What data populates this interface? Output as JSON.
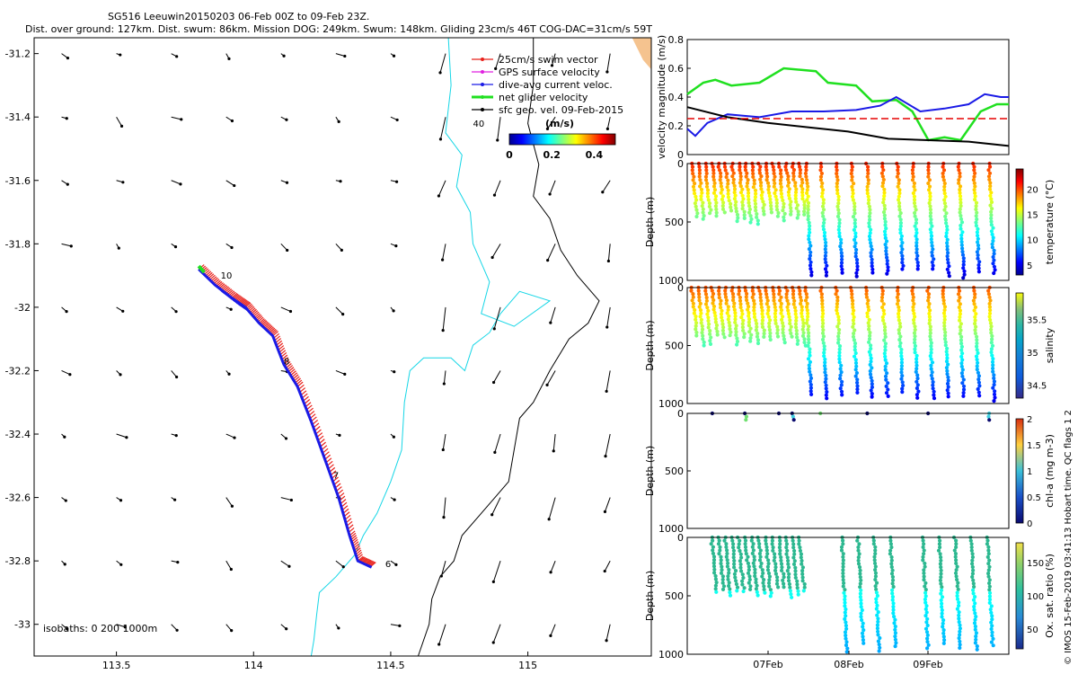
{
  "title_line1": "SG516 Leeuwin20150203 06-Feb 00Z to 09-Feb 23Z.",
  "title_line2": "Dist. over ground: 127km. Dist. swum: 86km. Mission DOG: 249km. Swum: 148km. Gliding 23cm/s 46T COG-DAC=31cm/s 59T",
  "side_label": "© IMOS 15-Feb-2019 03:41:13 Hobart time. QC flags 1  2",
  "colors": {
    "swim_vector": "#e8201a",
    "gps_velocity": "#e020e0",
    "dac": "#1a1ae6",
    "net_velocity": "#20e020",
    "sfc_geo": "#000000",
    "isobath_0": "#15d6e6",
    "isobath_200": "#000000",
    "land": "#f5c38f",
    "reference_line": "#e60000"
  },
  "chart_data": [
    {
      "type": "map",
      "xlim": [
        113.2,
        115.45
      ],
      "ylim": [
        -33.1,
        -31.15
      ],
      "xticks": [
        "113.5",
        "114",
        "114.5",
        "115"
      ],
      "yticks": [
        "-31.2",
        "-31.4",
        "-31.6",
        "-31.8",
        "-32",
        "-32.2",
        "-32.4",
        "-32.6",
        "-32.8",
        "-33"
      ],
      "legend": [
        "25cm/s swim vector",
        "GPS surface velocity",
        "dive-avg current veloc.",
        "net glider velocity",
        "sfc geo. vel. 09-Feb-2015"
      ],
      "colorbar": {
        "label": "(m/s)",
        "ticks": [
          "0",
          "0.2",
          "0.4"
        ],
        "range": [
          0,
          0.5
        ]
      },
      "isobaths_label": "isobaths: 0   200   1000m",
      "track": [
        [
          113.8,
          -31.88
        ],
        [
          113.86,
          -31.93
        ],
        [
          113.92,
          -31.97
        ],
        [
          113.97,
          -32.0
        ],
        [
          114.02,
          -32.05
        ],
        [
          114.07,
          -32.09
        ],
        [
          114.11,
          -32.18
        ],
        [
          114.16,
          -32.25
        ],
        [
          114.21,
          -32.36
        ],
        [
          114.26,
          -32.48
        ],
        [
          114.31,
          -32.6
        ],
        [
          114.35,
          -32.72
        ],
        [
          114.38,
          -32.8
        ],
        [
          114.43,
          -32.82
        ]
      ],
      "day_labels": [
        {
          "text": "10",
          "lon": 113.88,
          "lat": -31.91
        },
        {
          "text": "8",
          "lon": 114.11,
          "lat": -32.18
        },
        {
          "text": "7",
          "lon": 114.29,
          "lat": -32.54
        },
        {
          "text": "6",
          "lon": 114.48,
          "lat": -32.82
        },
        {
          "text": "40",
          "lon": 114.8,
          "lat": -31.43
        }
      ]
    },
    {
      "type": "line",
      "ylabel": "velocity magnitude (m/s)",
      "ylim": [
        0,
        0.8
      ],
      "yticks": [
        "0",
        "0.2",
        "0.4",
        "0.6",
        "0.8"
      ],
      "xlim": [
        0,
        4
      ],
      "series": [
        {
          "name": "net glider velocity",
          "x": [
            0,
            0.2,
            0.35,
            0.55,
            0.9,
            1.2,
            1.6,
            1.75,
            2.1,
            2.3,
            2.6,
            2.8,
            3.0,
            3.2,
            3.4,
            3.65,
            3.85,
            4.0
          ],
          "y": [
            0.42,
            0.5,
            0.52,
            0.48,
            0.5,
            0.6,
            0.58,
            0.5,
            0.48,
            0.37,
            0.38,
            0.3,
            0.1,
            0.12,
            0.1,
            0.3,
            0.35,
            0.35
          ]
        },
        {
          "name": "dive-avg current veloc.",
          "x": [
            0,
            0.1,
            0.25,
            0.5,
            0.9,
            1.3,
            1.7,
            2.1,
            2.4,
            2.6,
            2.9,
            3.2,
            3.5,
            3.7,
            3.9,
            4.0
          ],
          "y": [
            0.18,
            0.13,
            0.22,
            0.28,
            0.26,
            0.3,
            0.3,
            0.31,
            0.34,
            0.4,
            0.3,
            0.32,
            0.35,
            0.42,
            0.4,
            0.4
          ]
        },
        {
          "name": "sfc geo. vel.",
          "x": [
            0,
            0.5,
            1.0,
            1.5,
            2.0,
            2.5,
            3.0,
            3.5,
            4.0
          ],
          "y": [
            0.33,
            0.26,
            0.22,
            0.19,
            0.16,
            0.11,
            0.1,
            0.09,
            0.06
          ]
        },
        {
          "name": "reference",
          "x": [
            0,
            4
          ],
          "y": [
            0.25,
            0.25
          ]
        }
      ]
    },
    {
      "type": "scatter",
      "ylabel": "Depth (m)",
      "ylim": [
        0,
        1000
      ],
      "yticks": [
        "0",
        "500",
        "1000"
      ],
      "colorbar": {
        "label": "temperature (°C)",
        "ticks": [
          "5",
          "10",
          "15",
          "20"
        ],
        "range": [
          3,
          24
        ]
      }
    },
    {
      "type": "scatter",
      "ylabel": "Depth (m)",
      "ylim": [
        0,
        1000
      ],
      "yticks": [
        "0",
        "500",
        "1000"
      ],
      "colorbar": {
        "label": "salinity",
        "ticks": [
          "34.5",
          "35",
          "35.5"
        ],
        "range": [
          34.3,
          35.9
        ]
      }
    },
    {
      "type": "scatter",
      "ylabel": "Depth (m)",
      "ylim": [
        0,
        1000
      ],
      "yticks": [
        "0",
        "500",
        "1000"
      ],
      "colorbar": {
        "label": "chl-a (mg m-3)",
        "ticks": [
          "0",
          "0.5",
          "1",
          "1.5",
          "2"
        ],
        "range": [
          0,
          2
        ]
      }
    },
    {
      "type": "scatter",
      "ylabel": "Depth (m)",
      "ylim": [
        0,
        1000
      ],
      "yticks": [
        "0",
        "500",
        "1000"
      ],
      "xticks": [
        "07Feb",
        "08Feb",
        "09Feb"
      ],
      "colorbar": {
        "label": "Ox. sat. ratio (%)",
        "ticks": [
          "50",
          "100",
          "150"
        ],
        "range": [
          20,
          180
        ]
      }
    }
  ]
}
